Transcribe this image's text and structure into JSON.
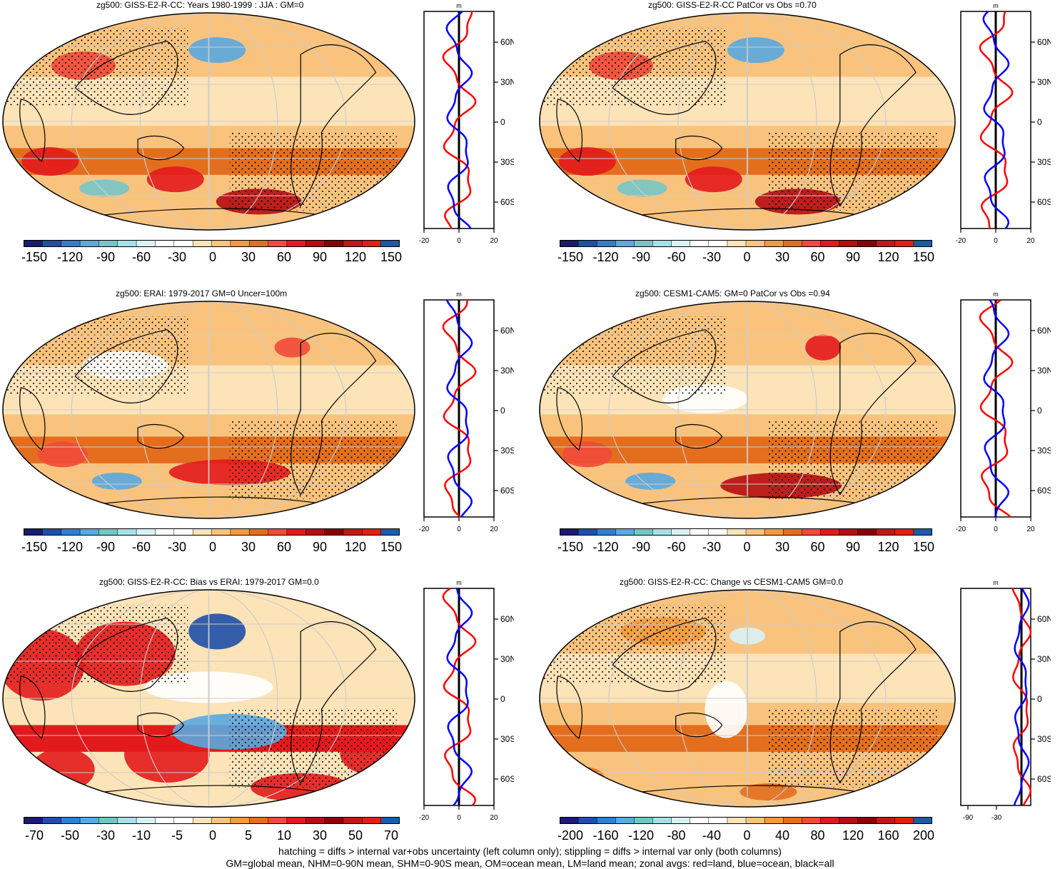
{
  "panels": [
    {
      "id": "p1",
      "title": "zg500: GISS-E2-R-CC: Years 1980-1999 : JJA : GM=0",
      "colorbar_labels": [
        "-150",
        "-120",
        "-90",
        "-60",
        "-30",
        "0",
        "30",
        "60",
        "90",
        "120",
        "150"
      ],
      "zonal_ticks_y": [
        "60N",
        "30N",
        "0",
        "30S",
        "60S"
      ],
      "zonal_ticks_x": [
        "-20",
        "0",
        "20"
      ],
      "zonal_unit": "m"
    },
    {
      "id": "p2",
      "title": "zg500: GISS-E2-R-CC PatCor vs Obs =0.70",
      "colorbar_labels": [
        "-150",
        "-120",
        "-90",
        "-60",
        "-30",
        "0",
        "30",
        "60",
        "90",
        "120",
        "150"
      ],
      "zonal_ticks_y": [
        "60N",
        "30N",
        "0",
        "30S",
        "60S"
      ],
      "zonal_ticks_x": [
        "-20",
        "0",
        "20"
      ],
      "zonal_unit": "m"
    },
    {
      "id": "p3",
      "title": "zg500: ERAI: 1979-2017 GM=0 Uncer=100m",
      "colorbar_labels": [
        "-150",
        "-120",
        "-90",
        "-60",
        "-30",
        "0",
        "30",
        "60",
        "90",
        "120",
        "150"
      ],
      "zonal_ticks_y": [
        "60N",
        "30N",
        "0",
        "30S",
        "60S"
      ],
      "zonal_ticks_x": [
        "-20",
        "0",
        "20"
      ],
      "zonal_unit": "m"
    },
    {
      "id": "p4",
      "title": "zg500: CESM1-CAM5: GM=0 PatCor vs Obs =0.94",
      "colorbar_labels": [
        "-150",
        "-120",
        "-90",
        "-60",
        "-30",
        "0",
        "30",
        "60",
        "90",
        "120",
        "150"
      ],
      "zonal_ticks_y": [
        "60N",
        "30N",
        "0",
        "30S",
        "60S"
      ],
      "zonal_ticks_x": [
        "-20",
        "0",
        "20"
      ],
      "zonal_unit": "m"
    },
    {
      "id": "p5",
      "title": "zg500: GISS-E2-R-CC: Bias vs ERAI: 1979-2017 GM=0.0",
      "colorbar_labels": [
        "-70",
        "-50",
        "-30",
        "-10",
        "-5",
        "0",
        "5",
        "10",
        "30",
        "50",
        "70"
      ],
      "zonal_ticks_y": [
        "60N",
        "30N",
        "0",
        "30S",
        "60S"
      ],
      "zonal_ticks_x": [
        "-20",
        "0",
        "20"
      ],
      "zonal_unit": "m"
    },
    {
      "id": "p6",
      "title": "zg500: GISS-E2-R-CC: Change vs CESM1-CAM5 GM=0.0",
      "colorbar_labels": [
        "-200",
        "-160",
        "-120",
        "-80",
        "-40",
        "0",
        "40",
        "80",
        "120",
        "160",
        "200"
      ],
      "zonal_ticks_y": [
        "60N",
        "30N",
        "0",
        "30S",
        "60S"
      ],
      "zonal_ticks_x": [
        "-90",
        "-30"
      ],
      "zonal_unit": "m"
    }
  ],
  "palette": [
    "#1a1a6e",
    "#1f4fa8",
    "#2f7fcf",
    "#5aa9e0",
    "#74c6c6",
    "#a6e0ea",
    "#d7f3f7",
    "#ffffff",
    "#ffffff",
    "#fde3b8",
    "#f9c37e",
    "#f29a3e",
    "#e36f1e",
    "#f24a3a",
    "#e31a1c",
    "#b50d12",
    "#8a0005",
    "#c01a10",
    "#e02010",
    "#1a5ca8"
  ],
  "footer_line1": "hatching = diffs > internal var+obs uncertainty (left column only); stippling = diffs > internal var only (both columns)",
  "footer_line2": "GM=global mean, NHM=0-90N mean, SHM=0-90S mean, OM=ocean mean, LM=land mean; zonal avgs: red=land, blue=ocean, black=all"
}
